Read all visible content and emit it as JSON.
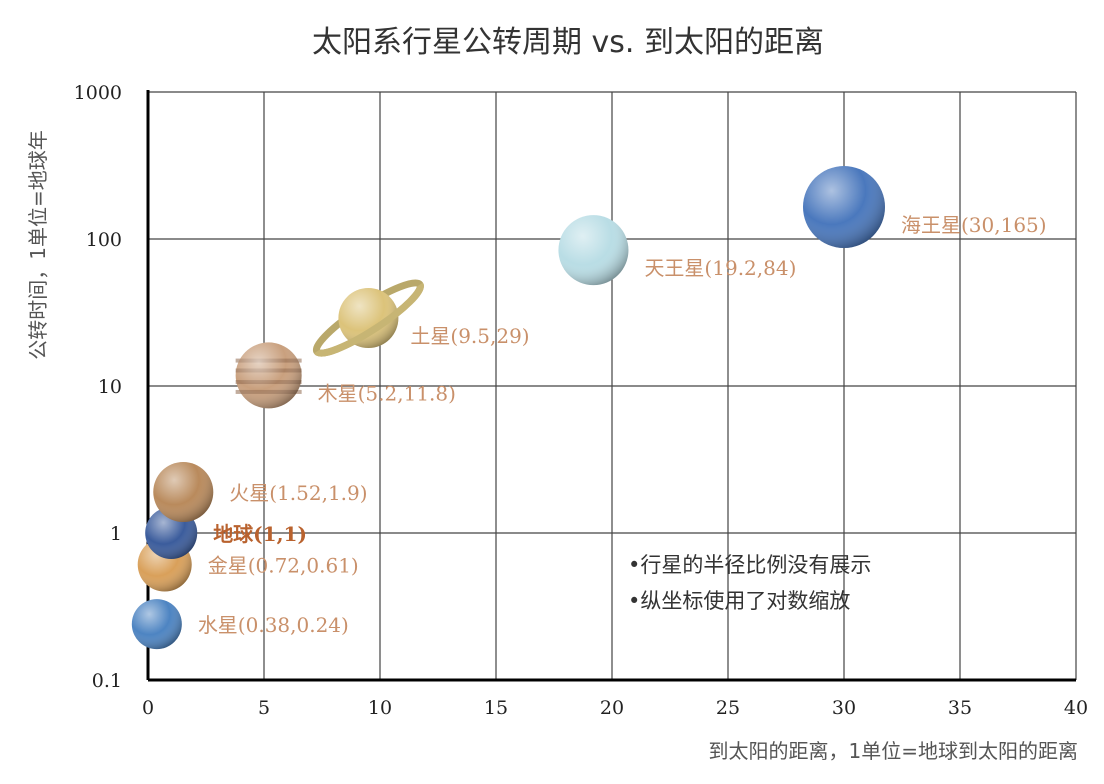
{
  "chart_data": {
    "type": "scatter",
    "title": "太阳系行星公转周期 vs. 到太阳的距离",
    "xlabel": "到太阳的距离，1单位=地球到太阳的距离",
    "ylabel": "公转时间，1单位=地球年",
    "xlim": [
      0,
      40
    ],
    "ylim": [
      0.1,
      1000
    ],
    "yscale": "log",
    "grid": true,
    "x_ticks": [
      "0",
      "5",
      "10",
      "15",
      "20",
      "25",
      "30",
      "35",
      "40"
    ],
    "y_ticks": [
      "0.1",
      "1",
      "10",
      "100",
      "1000"
    ],
    "points": [
      {
        "label": "水星(0.38,0.24)",
        "x": 0.38,
        "y": 0.24,
        "color": "#4d84c2"
      },
      {
        "label": "金星(0.72,0.61)",
        "x": 0.72,
        "y": 0.61,
        "color": "#d9a05a"
      },
      {
        "label": "地球(1,1)",
        "x": 1,
        "y": 1,
        "color": "#3b5c9c"
      },
      {
        "label": "火星(1.52,1.9)",
        "x": 1.52,
        "y": 1.9,
        "color": "#b98a5c"
      },
      {
        "label": "木星(5.2,11.8)",
        "x": 5.2,
        "y": 11.8,
        "color": "#c9a07e"
      },
      {
        "label": "土星(9.5,29)",
        "x": 9.5,
        "y": 29,
        "color": "#dcc37a"
      },
      {
        "label": "天王星(19.2,84)",
        "x": 19.2,
        "y": 84,
        "color": "#b9dde5"
      },
      {
        "label": "海王星(30,165)",
        "x": 30,
        "y": 165,
        "color": "#4a78bd"
      }
    ],
    "annotations": [
      "•行星的半径比例没有展示",
      "•纵坐标使用了对数缩放"
    ]
  }
}
